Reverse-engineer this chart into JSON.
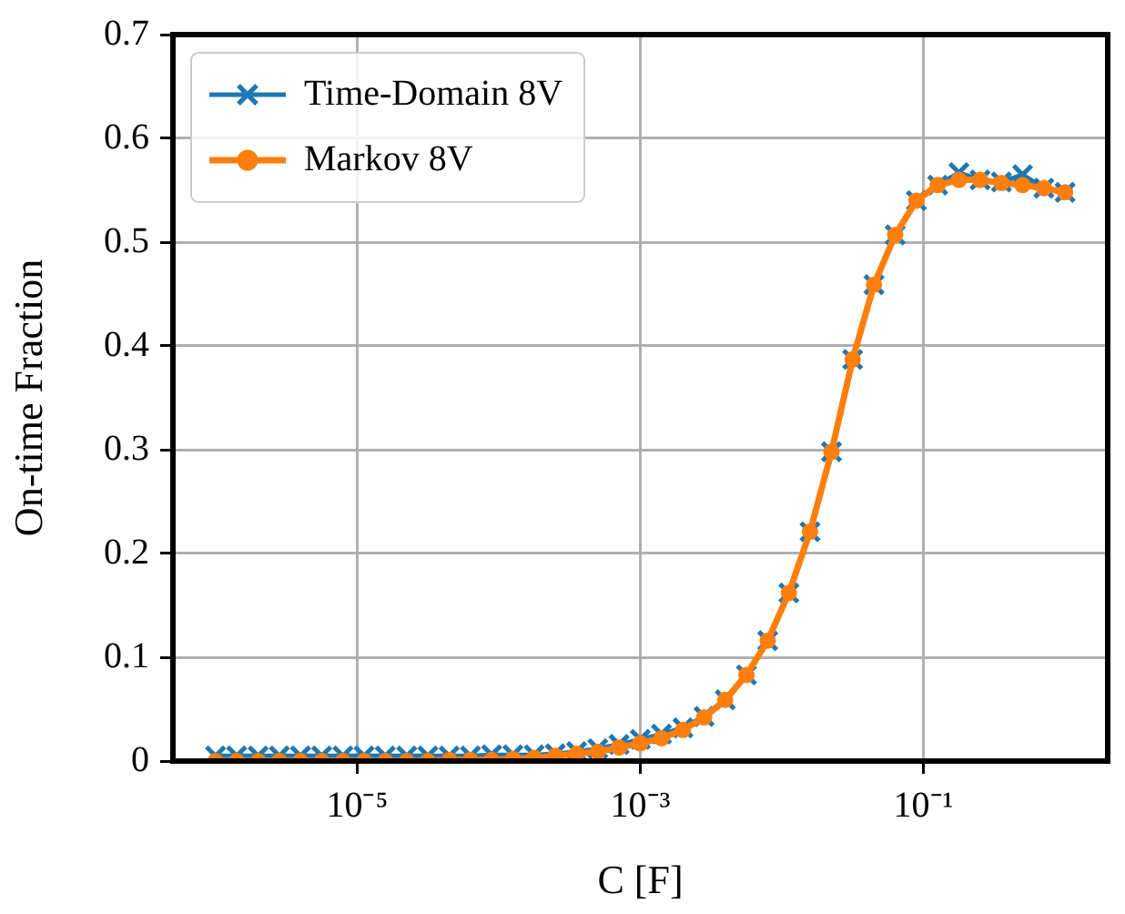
{
  "chart_data": {
    "type": "line",
    "xlabel": "C [F]",
    "ylabel": "On-time Fraction",
    "x": [
      1e-06,
      1.41e-06,
      2e-06,
      2.82e-06,
      3.98e-06,
      5.62e-06,
      7.94e-06,
      1.12e-05,
      1.58e-05,
      2.24e-05,
      3.16e-05,
      4.47e-05,
      6.31e-05,
      8.91e-05,
      0.000126,
      0.000178,
      0.000251,
      0.000355,
      0.000501,
      0.000708,
      0.001,
      0.00141,
      0.002,
      0.00282,
      0.00398,
      0.00562,
      0.00794,
      0.0112,
      0.0158,
      0.0224,
      0.0316,
      0.0447,
      0.0631,
      0.0891,
      0.126,
      0.178,
      0.251,
      0.355,
      0.501,
      0.708,
      1
    ],
    "series": [
      {
        "name": "Time-Domain 8V",
        "color": "#1f77b4",
        "marker": "cross",
        "values": [
          0.005,
          0.005,
          0.005,
          0.005,
          0.005,
          0.005,
          0.005,
          0.005,
          0.005,
          0.005,
          0.005,
          0.005,
          0.005,
          0.006,
          0.006,
          0.006,
          0.007,
          0.009,
          0.012,
          0.016,
          0.021,
          0.026,
          0.032,
          0.043,
          0.059,
          0.083,
          0.116,
          0.162,
          0.221,
          0.298,
          0.387,
          0.459,
          0.507,
          0.54,
          0.555,
          0.567,
          0.56,
          0.558,
          0.565,
          0.552,
          0.548
        ]
      },
      {
        "name": "Markov 8V",
        "color": "#ff7f0e",
        "marker": "circle",
        "values": [
          0,
          0,
          0,
          0,
          0,
          0,
          0,
          0,
          0,
          0,
          0,
          0.001,
          0.001,
          0.001,
          0.002,
          0.003,
          0.005,
          0.007,
          0.009,
          0.013,
          0.017,
          0.022,
          0.03,
          0.042,
          0.059,
          0.083,
          0.116,
          0.162,
          0.221,
          0.298,
          0.387,
          0.459,
          0.507,
          0.54,
          0.555,
          0.56,
          0.56,
          0.557,
          0.555,
          0.552,
          0.548
        ]
      }
    ],
    "log": "x",
    "xlim": [
      5e-07,
      2
    ],
    "xticks": [
      {
        "value": 1e-05,
        "label": "10⁻⁵"
      },
      {
        "value": 0.001,
        "label": "10⁻³"
      },
      {
        "value": 0.1,
        "label": "10⁻¹"
      }
    ],
    "ylim": [
      0,
      0.7
    ],
    "yticks": [
      0,
      0.1,
      0.2,
      0.3,
      0.4,
      0.5,
      0.6,
      0.7
    ],
    "grid": true,
    "legend": "top left",
    "line_style": "solid"
  }
}
